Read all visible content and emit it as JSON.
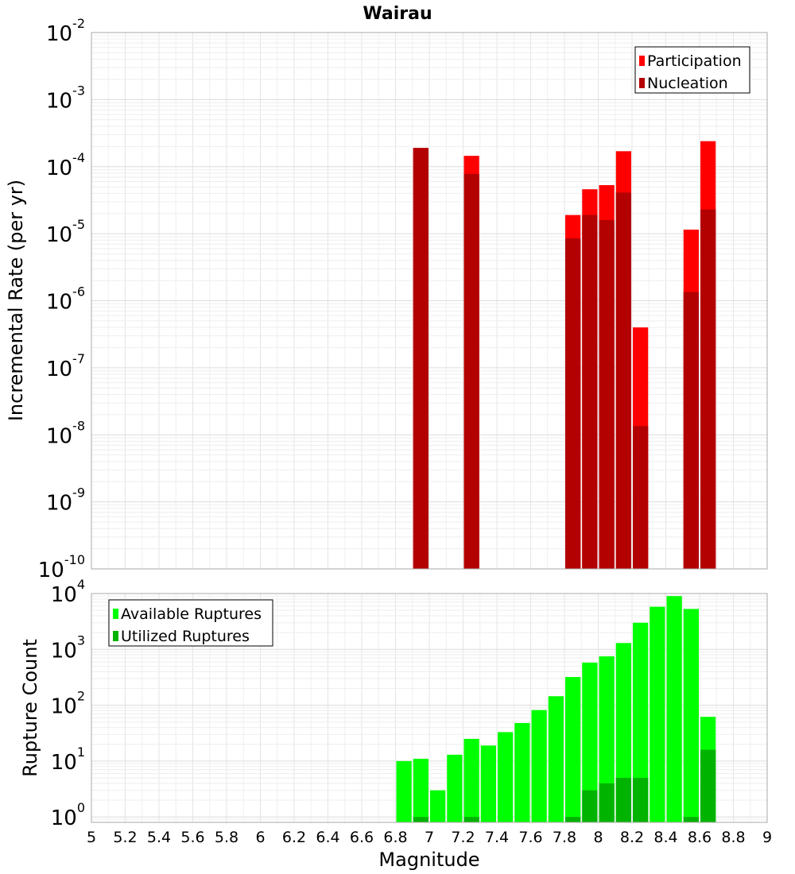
{
  "chart_data": [
    {
      "type": "bar",
      "title": "Wairau",
      "xlabel": "Magnitude",
      "ylabel": "Incremental Rate (per yr)",
      "yscale": "log",
      "ylim": [
        1e-10,
        0.01
      ],
      "xlim": [
        5,
        9
      ],
      "bar_width": 0.1,
      "legend_position": "top-right",
      "colors": {
        "participation": "#ff0000",
        "nucleation": "#b30000"
      },
      "y_ticks": [
        {
          "base": "10",
          "exp": "-10"
        },
        {
          "base": "10",
          "exp": "-9"
        },
        {
          "base": "10",
          "exp": "-8"
        },
        {
          "base": "10",
          "exp": "-7"
        },
        {
          "base": "10",
          "exp": "-6"
        },
        {
          "base": "10",
          "exp": "-5"
        },
        {
          "base": "10",
          "exp": "-4"
        },
        {
          "base": "10",
          "exp": "-3"
        },
        {
          "base": "10",
          "exp": "-2"
        }
      ],
      "series": [
        {
          "name": "Participation",
          "x": [
            6.95,
            7.25,
            7.85,
            7.95,
            8.05,
            8.15,
            8.25,
            8.55,
            8.65
          ],
          "values": [
            0.00019,
            0.000145,
            1.9e-05,
            4.6e-05,
            5.3e-05,
            0.00017,
            4e-07,
            1.15e-05,
            0.00024
          ]
        },
        {
          "name": "Nucleation",
          "x": [
            6.95,
            7.25,
            7.85,
            7.95,
            8.05,
            8.15,
            8.25,
            8.55,
            8.65
          ],
          "values": [
            0.00019,
            7.8e-05,
            8.5e-06,
            1.9e-05,
            1.6e-05,
            4.1e-05,
            1.35e-08,
            1.35e-06,
            2.3e-05
          ]
        }
      ]
    },
    {
      "type": "bar",
      "xlabel": "Magnitude",
      "ylabel": "Rupture Count",
      "yscale": "log",
      "ylim": [
        0.8,
        10000
      ],
      "xlim": [
        5,
        9
      ],
      "bar_width": 0.1,
      "legend_position": "top-left",
      "colors": {
        "available": "#00ff00",
        "utilized": "#00b300"
      },
      "x_ticks": [
        "5",
        "5.2",
        "5.4",
        "5.6",
        "5.8",
        "6",
        "6.2",
        "6.4",
        "6.6",
        "6.8",
        "7",
        "7.2",
        "7.4",
        "7.6",
        "7.8",
        "8",
        "8.2",
        "8.4",
        "8.6",
        "8.8",
        "9"
      ],
      "y_ticks": [
        {
          "base": "10",
          "exp": "0"
        },
        {
          "base": "10",
          "exp": "1"
        },
        {
          "base": "10",
          "exp": "2"
        },
        {
          "base": "10",
          "exp": "3"
        },
        {
          "base": "10",
          "exp": "4"
        }
      ],
      "series": [
        {
          "name": "Available Ruptures",
          "x": [
            6.85,
            6.95,
            7.05,
            7.15,
            7.25,
            7.35,
            7.45,
            7.55,
            7.65,
            7.75,
            7.85,
            7.95,
            8.05,
            8.15,
            8.25,
            8.35,
            8.45,
            8.55,
            8.65
          ],
          "values": [
            10,
            11,
            3,
            13,
            25,
            19,
            33,
            48,
            82,
            145,
            320,
            580,
            750,
            1300,
            3000,
            5800,
            9000,
            5300,
            62
          ]
        },
        {
          "name": "Utilized Ruptures",
          "x": [
            6.95,
            7.25,
            7.85,
            7.95,
            8.05,
            8.15,
            8.25,
            8.55,
            8.65
          ],
          "values": [
            1,
            1,
            1,
            3,
            4,
            5,
            5,
            1,
            16
          ]
        }
      ]
    }
  ]
}
